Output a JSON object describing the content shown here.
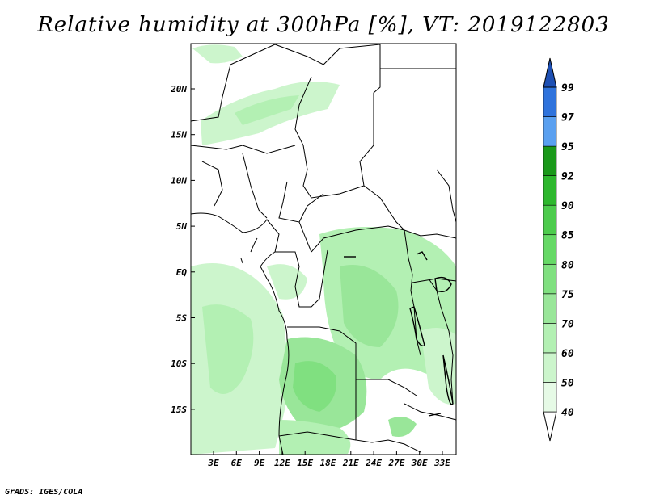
{
  "title": "Relative humidity at 300hPa [%], VT: 2019122803",
  "credit": "GrADS: IGES/COLA",
  "lat_ticks": [
    "20N",
    "15N",
    "10N",
    "5N",
    "EQ",
    "5S",
    "10S",
    "15S"
  ],
  "lon_ticks": [
    "3E",
    "6E",
    "9E",
    "12E",
    "15E",
    "18E",
    "21E",
    "24E",
    "27E",
    "30E",
    "33E"
  ],
  "colorbar": {
    "labels": [
      "40",
      "50",
      "60",
      "70",
      "75",
      "80",
      "85",
      "90",
      "92",
      "95",
      "97",
      "99"
    ],
    "colors": [
      "#ffffff",
      "#e6fae6",
      "#ccf5cc",
      "#b3f0b3",
      "#99e699",
      "#80e080",
      "#66d966",
      "#4dcc4d",
      "#2eb82e",
      "#1a991a",
      "#5aa0f0",
      "#2f73dc",
      "#1e50b4"
    ]
  }
}
